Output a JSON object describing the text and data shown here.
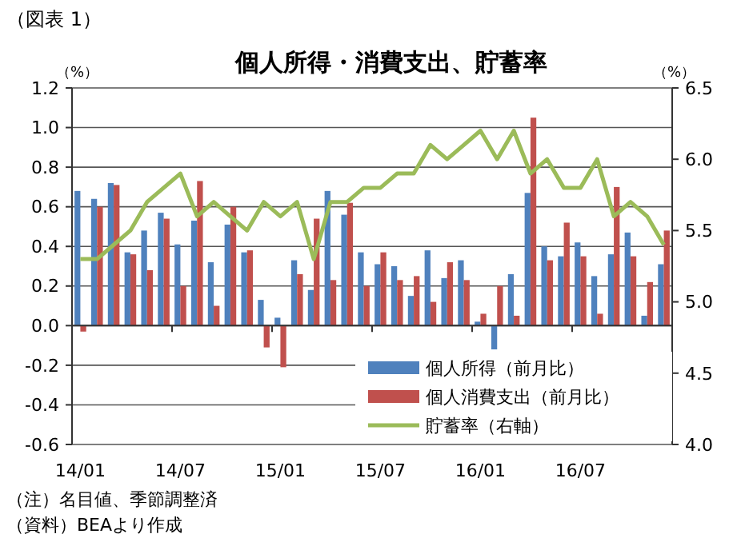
{
  "chart_data": {
    "type": "bar",
    "title": "個人所得・消費支出、貯蓄率",
    "ylabel": "（%）",
    "y2label": "（%）",
    "annotations": [
      "（図表 1）",
      "（注）名目値、季節調整済",
      "（資料）BEAより作成"
    ],
    "categories": [
      "14/01",
      null,
      null,
      null,
      null,
      null,
      "14/07",
      null,
      null,
      null,
      null,
      null,
      "15/01",
      null,
      null,
      null,
      null,
      null,
      "15/07",
      null,
      null,
      null,
      null,
      null,
      "16/01",
      null,
      null,
      null,
      null,
      null,
      "16/07",
      null,
      null,
      null,
      null,
      null
    ],
    "series": [
      {
        "name": "個人所得（前月比）",
        "color": "#4f81bd",
        "values": [
          0.68,
          0.64,
          0.72,
          0.37,
          0.48,
          0.57,
          0.41,
          0.53,
          0.32,
          0.51,
          0.37,
          0.13,
          0.04,
          0.33,
          0.18,
          0.68,
          0.56,
          0.37,
          0.31,
          0.3,
          0.15,
          0.38,
          0.24,
          0.33,
          0.02,
          -0.12,
          0.26,
          0.67,
          0.4,
          0.35,
          0.42,
          0.25,
          0.36,
          0.47,
          0.05,
          0.31
        ]
      },
      {
        "name": "個人消費支出（前月比）",
        "color": "#c0504d",
        "values": [
          -0.03,
          0.6,
          0.71,
          0.36,
          0.28,
          0.54,
          0.2,
          0.73,
          0.1,
          0.6,
          0.38,
          -0.11,
          -0.21,
          0.26,
          0.54,
          0.23,
          0.62,
          0.2,
          0.37,
          0.23,
          0.25,
          0.12,
          0.32,
          0.23,
          0.06,
          0.2,
          0.05,
          1.05,
          0.33,
          0.52,
          0.35,
          0.06,
          0.7,
          0.35,
          0.22,
          0.48
        ]
      },
      {
        "name": "貯蓄率（右軸）",
        "type": "line",
        "axis": "y2",
        "color": "#9bbb59",
        "values": [
          5.3,
          5.3,
          5.4,
          5.5,
          5.7,
          5.8,
          5.9,
          5.6,
          5.7,
          5.6,
          5.5,
          5.7,
          5.6,
          5.7,
          5.3,
          5.7,
          5.7,
          5.8,
          5.8,
          5.9,
          5.9,
          6.1,
          6.0,
          6.1,
          6.2,
          6.0,
          6.2,
          5.9,
          6.0,
          5.8,
          5.8,
          6.0,
          5.6,
          5.7,
          5.6,
          5.4
        ]
      }
    ],
    "ylim": [
      -0.6,
      1.2
    ],
    "yticks": [
      {
        "value": -0.6,
        "label": "-0.6"
      },
      {
        "value": -0.4,
        "label": "-0.4"
      },
      {
        "value": -0.2,
        "label": "-0.2"
      },
      {
        "value": 0,
        "label": "0.0"
      },
      {
        "value": 0.2,
        "label": "0.2"
      },
      {
        "value": 0.4,
        "label": "0.4"
      },
      {
        "value": 0.6,
        "label": "0.6"
      },
      {
        "value": 0.8,
        "label": "0.8"
      },
      {
        "value": 1,
        "label": "1.0"
      },
      {
        "value": 1.2,
        "label": "1.2"
      }
    ],
    "y2lim": [
      4.0,
      6.5
    ],
    "y2ticks": [
      {
        "value": 4,
        "label": "4.0"
      },
      {
        "value": 4.5,
        "label": "4.5"
      },
      {
        "value": 5,
        "label": "5.0"
      },
      {
        "value": 5.5,
        "label": "5.5"
      },
      {
        "value": 6,
        "label": "6.0"
      },
      {
        "value": 6.5,
        "label": "6.5"
      }
    ],
    "grid": "y",
    "legend": "bottom right"
  }
}
